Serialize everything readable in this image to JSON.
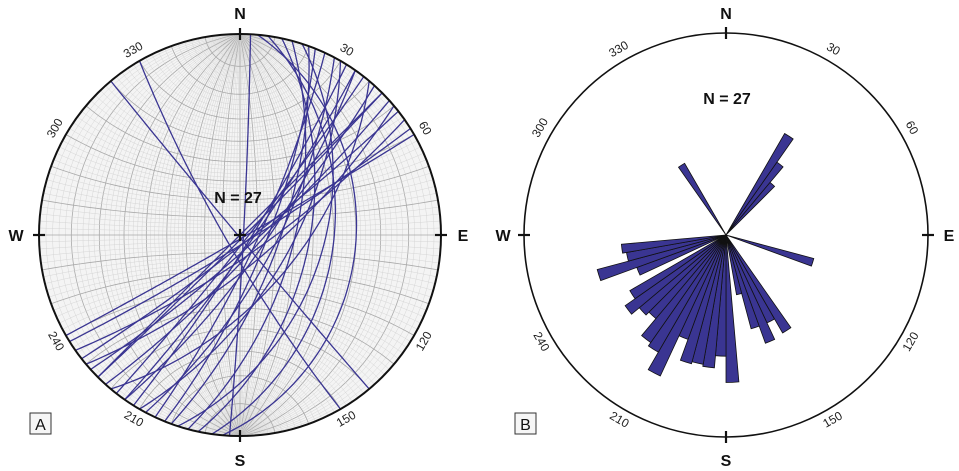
{
  "panel_a": {
    "label": "A",
    "count_label": "N = 27",
    "cardinals": {
      "n": "N",
      "e": "E",
      "s": "S",
      "w": "W"
    },
    "degree_labels": [
      "30",
      "60",
      "120",
      "150",
      "210",
      "240",
      "300",
      "330"
    ],
    "plane_color": "#3a3592",
    "great_circles": [
      {
        "strike": 5,
        "dip": 30
      },
      {
        "strike": 8,
        "dip": 40
      },
      {
        "strike": 12,
        "dip": 52
      },
      {
        "strike": 15,
        "dip": 60
      },
      {
        "strike": 18,
        "dip": 45
      },
      {
        "strike": 20,
        "dip": 68
      },
      {
        "strike": 22,
        "dip": 75
      },
      {
        "strike": 25,
        "dip": 80
      },
      {
        "strike": 28,
        "dip": 70
      },
      {
        "strike": 30,
        "dip": 62
      },
      {
        "strike": 32,
        "dip": 84
      },
      {
        "strike": 35,
        "dip": 76
      },
      {
        "strike": 38,
        "dip": 86
      },
      {
        "strike": 40,
        "dip": 58
      },
      {
        "strike": 42,
        "dip": 79
      },
      {
        "strike": 45,
        "dip": 88
      },
      {
        "strike": 48,
        "dip": 82
      },
      {
        "strike": 50,
        "dip": 73
      },
      {
        "strike": 52,
        "dip": 85
      },
      {
        "strike": 3,
        "dip": 88
      },
      {
        "strike": 35,
        "dip": 83
      },
      {
        "strike": 45,
        "dip": 90
      },
      {
        "strike": 55,
        "dip": 78
      },
      {
        "strike": 58,
        "dip": 85
      },
      {
        "strike": 60,
        "dip": 88
      },
      {
        "strike": 150,
        "dip": 82
      },
      {
        "strike": 140,
        "dip": 89
      }
    ]
  },
  "panel_b": {
    "label": "B",
    "count_label": "N = 27",
    "cardinals": {
      "n": "N",
      "e": "E",
      "s": "S",
      "w": "W"
    },
    "degree_labels": [
      "30",
      "60",
      "120",
      "150",
      "210",
      "240",
      "300",
      "330"
    ],
    "petal_color": "#3a3592",
    "petals": [
      {
        "from": 30,
        "to": 35,
        "radius": 0.58
      },
      {
        "from": 35,
        "to": 40,
        "radius": 0.44
      },
      {
        "from": 40,
        "to": 45,
        "radius": 0.34
      },
      {
        "from": 105,
        "to": 110,
        "radius": 0.45
      },
      {
        "from": 145,
        "to": 150,
        "radius": 0.56
      },
      {
        "from": 150,
        "to": 155,
        "radius": 0.48
      },
      {
        "from": 155,
        "to": 160,
        "radius": 0.57
      },
      {
        "from": 160,
        "to": 165,
        "radius": 0.48
      },
      {
        "from": 165,
        "to": 170,
        "radius": 0.3
      },
      {
        "from": 175,
        "to": 180,
        "radius": 0.73
      },
      {
        "from": 180,
        "to": 185,
        "radius": 0.6
      },
      {
        "from": 185,
        "to": 190,
        "radius": 0.66
      },
      {
        "from": 190,
        "to": 195,
        "radius": 0.65
      },
      {
        "from": 195,
        "to": 200,
        "radius": 0.66
      },
      {
        "from": 200,
        "to": 205,
        "radius": 0.55
      },
      {
        "from": 205,
        "to": 210,
        "radius": 0.77
      },
      {
        "from": 210,
        "to": 215,
        "radius": 0.67
      },
      {
        "from": 215,
        "to": 220,
        "radius": 0.65
      },
      {
        "from": 220,
        "to": 225,
        "radius": 0.54
      },
      {
        "from": 225,
        "to": 230,
        "radius": 0.56
      },
      {
        "from": 230,
        "to": 235,
        "radius": 0.61
      },
      {
        "from": 235,
        "to": 240,
        "radius": 0.55
      },
      {
        "from": 245,
        "to": 250,
        "radius": 0.47
      },
      {
        "from": 250,
        "to": 255,
        "radius": 0.66
      },
      {
        "from": 255,
        "to": 260,
        "radius": 0.5
      },
      {
        "from": 260,
        "to": 265,
        "radius": 0.52
      },
      {
        "from": 325,
        "to": 330,
        "radius": 0.41
      }
    ]
  }
}
